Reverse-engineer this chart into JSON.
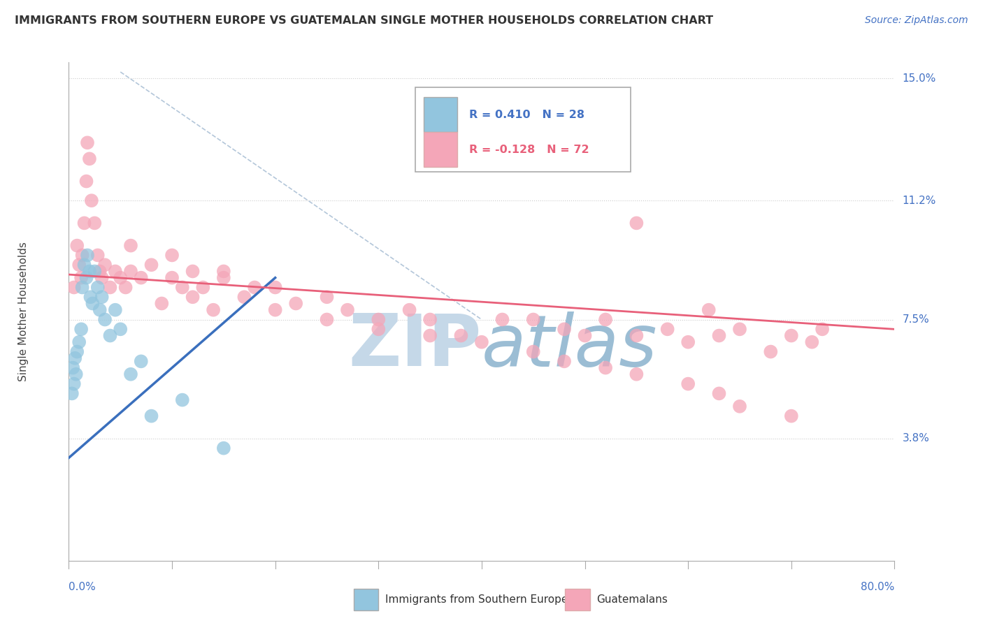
{
  "title": "IMMIGRANTS FROM SOUTHERN EUROPE VS GUATEMALAN SINGLE MOTHER HOUSEHOLDS CORRELATION CHART",
  "source_text": "Source: ZipAtlas.com",
  "xmin": 0.0,
  "xmax": 80.0,
  "ymin": 0.0,
  "ymax": 15.5,
  "ytick_vals": [
    3.8,
    7.5,
    11.2,
    15.0
  ],
  "ytick_labels": [
    "3.8%",
    "7.5%",
    "11.2%",
    "15.0%"
  ],
  "legend_R1": "0.410",
  "legend_N1": "28",
  "legend_R2": "-0.128",
  "legend_N2": "72",
  "color_blue": "#92c5de",
  "color_pink": "#f4a6b8",
  "color_blue_line": "#3a6fbd",
  "color_pink_line": "#e8607a",
  "color_diag": "#a0b8d0",
  "watermark_color": "#c5d8e8",
  "blue_trend_x0": 0.0,
  "blue_trend_y0": 3.2,
  "blue_trend_x1": 20.0,
  "blue_trend_y1": 8.8,
  "pink_trend_x0": 0.0,
  "pink_trend_y0": 8.9,
  "pink_trend_x1": 80.0,
  "pink_trend_y1": 7.2,
  "diag_x0": 5.0,
  "diag_y0": 15.2,
  "diag_x1": 40.0,
  "diag_y1": 7.5,
  "blue_x": [
    0.3,
    0.4,
    0.5,
    0.6,
    0.7,
    0.8,
    1.0,
    1.2,
    1.3,
    1.5,
    1.7,
    1.8,
    2.0,
    2.1,
    2.3,
    2.5,
    2.8,
    3.0,
    3.2,
    3.5,
    4.0,
    4.5,
    5.0,
    6.0,
    7.0,
    8.0,
    11.0,
    15.0
  ],
  "blue_y": [
    5.2,
    6.0,
    5.5,
    6.3,
    5.8,
    6.5,
    6.8,
    7.2,
    8.5,
    9.2,
    8.8,
    9.5,
    9.0,
    8.2,
    8.0,
    9.0,
    8.5,
    7.8,
    8.2,
    7.5,
    7.0,
    7.8,
    7.2,
    5.8,
    6.2,
    4.5,
    5.0,
    3.5
  ],
  "pink_x": [
    0.5,
    0.8,
    1.0,
    1.2,
    1.3,
    1.5,
    1.7,
    1.8,
    2.0,
    2.2,
    2.5,
    2.8,
    3.0,
    3.2,
    3.5,
    4.0,
    4.5,
    5.0,
    5.5,
    6.0,
    7.0,
    8.0,
    9.0,
    10.0,
    11.0,
    12.0,
    13.0,
    14.0,
    15.0,
    17.0,
    18.0,
    20.0,
    22.0,
    25.0,
    27.0,
    30.0,
    33.0,
    35.0,
    38.0,
    42.0,
    45.0,
    48.0,
    50.0,
    52.0,
    55.0,
    58.0,
    60.0,
    63.0,
    65.0,
    68.0,
    70.0,
    72.0,
    73.0,
    55.0,
    62.0,
    6.0,
    10.0,
    12.0,
    15.0,
    20.0,
    25.0,
    30.0,
    35.0,
    40.0,
    45.0,
    48.0,
    52.0,
    55.0,
    60.0,
    63.0,
    65.0,
    70.0
  ],
  "pink_y": [
    8.5,
    9.8,
    9.2,
    8.8,
    9.5,
    10.5,
    11.8,
    13.0,
    12.5,
    11.2,
    10.5,
    9.5,
    9.0,
    8.8,
    9.2,
    8.5,
    9.0,
    8.8,
    8.5,
    9.0,
    8.8,
    9.2,
    8.0,
    8.8,
    8.5,
    8.2,
    8.5,
    7.8,
    9.0,
    8.2,
    8.5,
    7.8,
    8.0,
    7.5,
    7.8,
    7.2,
    7.8,
    7.5,
    7.0,
    7.5,
    7.5,
    7.2,
    7.0,
    7.5,
    7.0,
    7.2,
    6.8,
    7.0,
    7.2,
    6.5,
    7.0,
    6.8,
    7.2,
    10.5,
    7.8,
    9.8,
    9.5,
    9.0,
    8.8,
    8.5,
    8.2,
    7.5,
    7.0,
    6.8,
    6.5,
    6.2,
    6.0,
    5.8,
    5.5,
    5.2,
    4.8,
    4.5
  ]
}
